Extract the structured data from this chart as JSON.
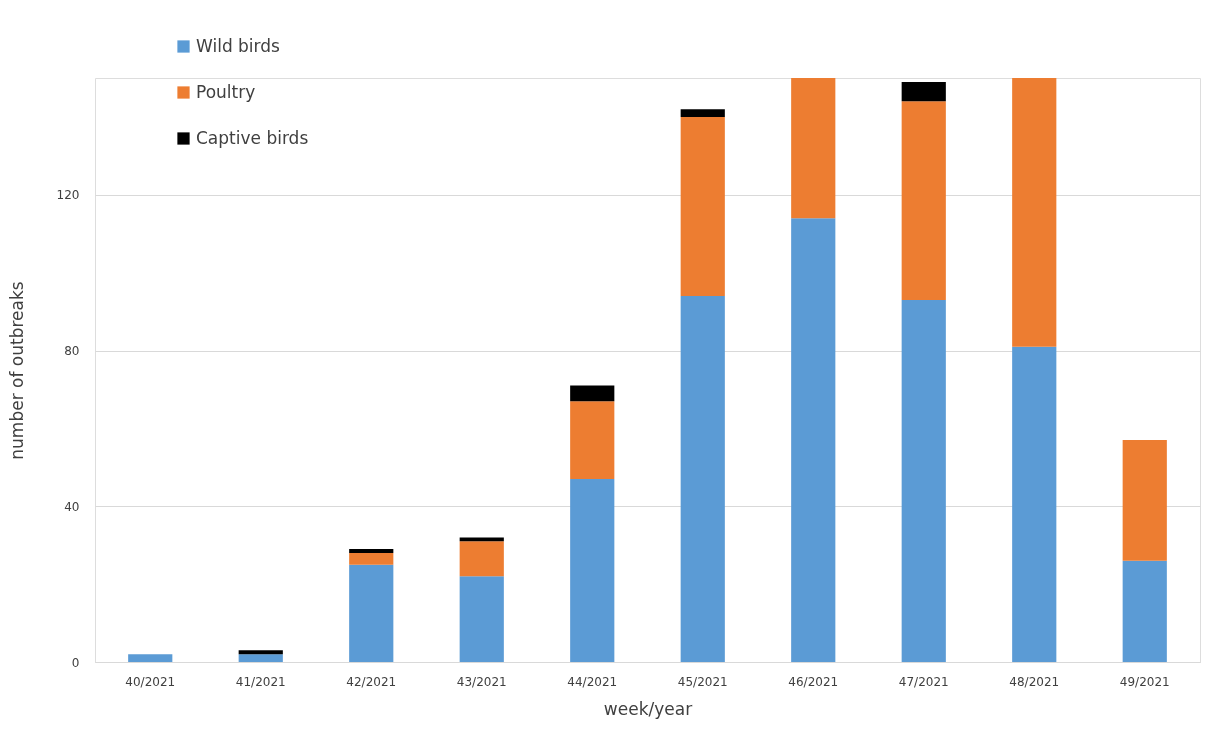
{
  "chart_data": {
    "type": "bar",
    "stacked": true,
    "xlabel": "week/year",
    "ylabel": "number of outbreaks",
    "categories": [
      "40/2021",
      "41/2021",
      "42/2021",
      "43/2021",
      "44/2021",
      "45/2021",
      "46/2021",
      "47/2021",
      "48/2021",
      "49/2021"
    ],
    "series": [
      {
        "name": "Wild birds",
        "color": "#5b9bd5",
        "values": [
          2,
          2,
          25,
          22,
          47,
          94,
          114,
          93,
          81,
          26
        ]
      },
      {
        "name": "Poultry",
        "color": "#ed7d31",
        "values": [
          0,
          0,
          3,
          9,
          20,
          46,
          36,
          51,
          69,
          31
        ]
      },
      {
        "name": "Captive birds",
        "color": "#000000",
        "values": [
          0,
          1,
          1,
          1,
          4,
          2,
          0,
          5,
          0,
          0
        ]
      }
    ],
    "ylim": [
      0,
      150
    ],
    "yticks": [
      0,
      40,
      80,
      120
    ],
    "grid": "y",
    "legend": "top left"
  }
}
